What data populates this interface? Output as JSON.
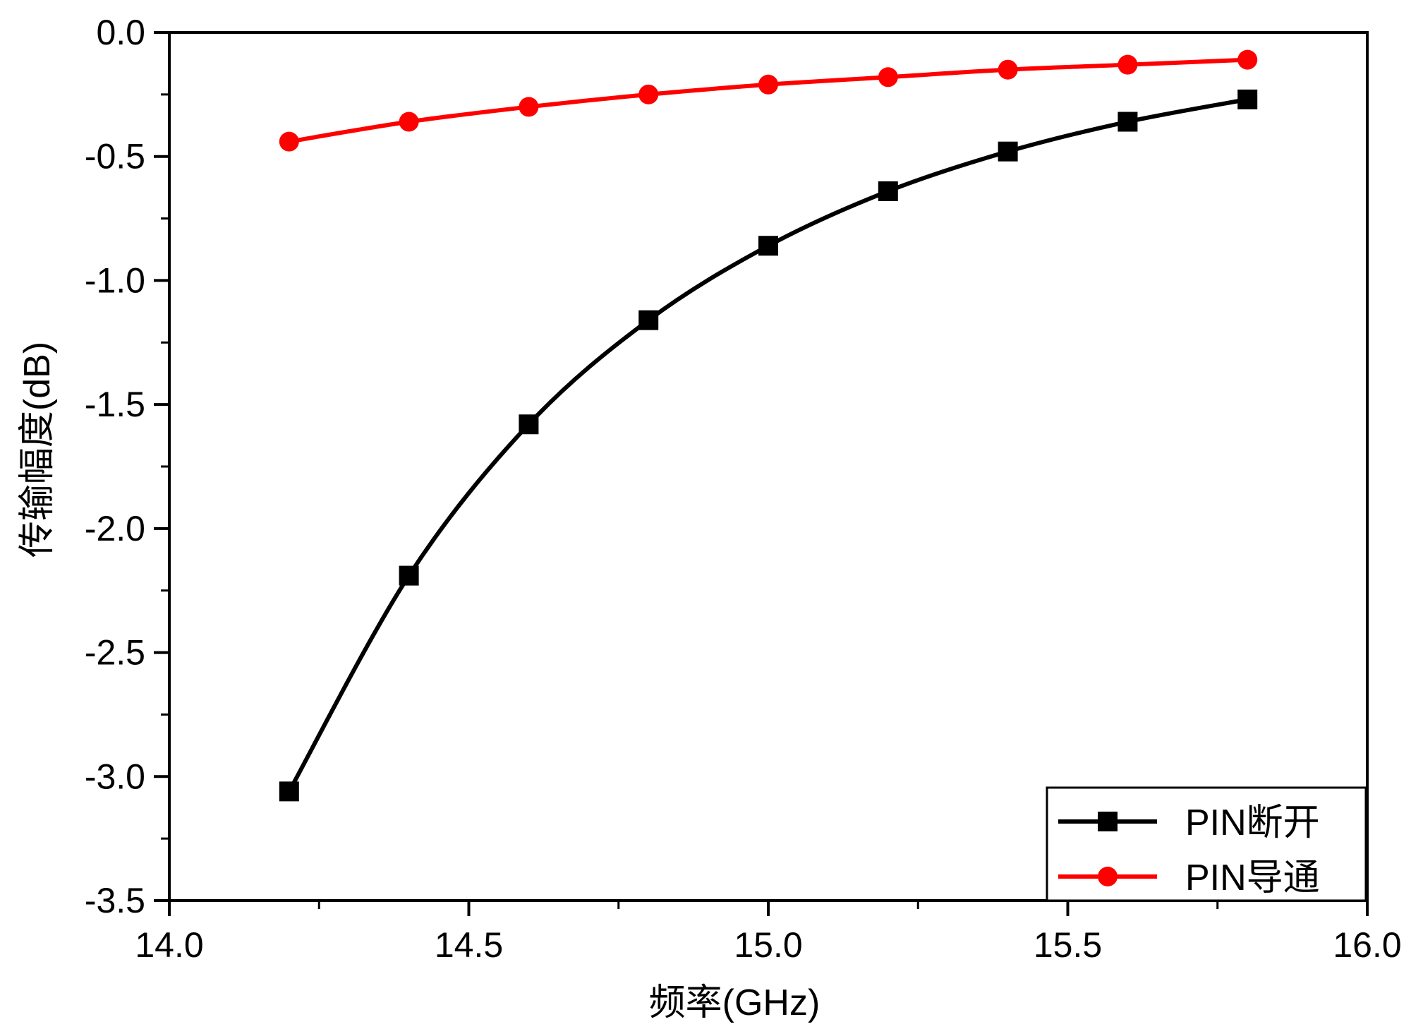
{
  "chart_data": {
    "type": "line",
    "title": "",
    "xlabel": "频率(GHz)",
    "ylabel": "传输幅度(dB)",
    "xlim": [
      14.0,
      16.0
    ],
    "ylim": [
      -3.5,
      0.0
    ],
    "xticks": [
      14.0,
      14.5,
      15.0,
      15.5,
      16.0
    ],
    "xtick_labels": [
      "14.0",
      "14.5",
      "15.0",
      "15.5",
      "16.0"
    ],
    "yticks": [
      0.0,
      -0.5,
      -1.0,
      -1.5,
      -2.0,
      -2.5,
      -3.0,
      -3.5
    ],
    "ytick_labels": [
      "0.0",
      "-0.5",
      "-1.0",
      "-1.5",
      "-2.0",
      "-2.5",
      "-3.0",
      "-3.5"
    ],
    "grid": false,
    "legend_position": "bottom-right",
    "series": [
      {
        "name": "PIN断开",
        "color": "#000000",
        "marker": "square",
        "x": [
          14.2,
          14.4,
          14.6,
          14.8,
          15.0,
          15.2,
          15.4,
          15.6,
          15.8
        ],
        "y": [
          -3.06,
          -2.19,
          -1.58,
          -1.16,
          -0.86,
          -0.64,
          -0.48,
          -0.36,
          -0.27
        ]
      },
      {
        "name": "PIN导通",
        "color": "#ff0000",
        "marker": "circle",
        "x": [
          14.2,
          14.4,
          14.6,
          14.8,
          15.0,
          15.2,
          15.4,
          15.6,
          15.8
        ],
        "y": [
          -0.44,
          -0.36,
          -0.3,
          -0.25,
          -0.21,
          -0.18,
          -0.15,
          -0.13,
          -0.11
        ]
      }
    ]
  }
}
